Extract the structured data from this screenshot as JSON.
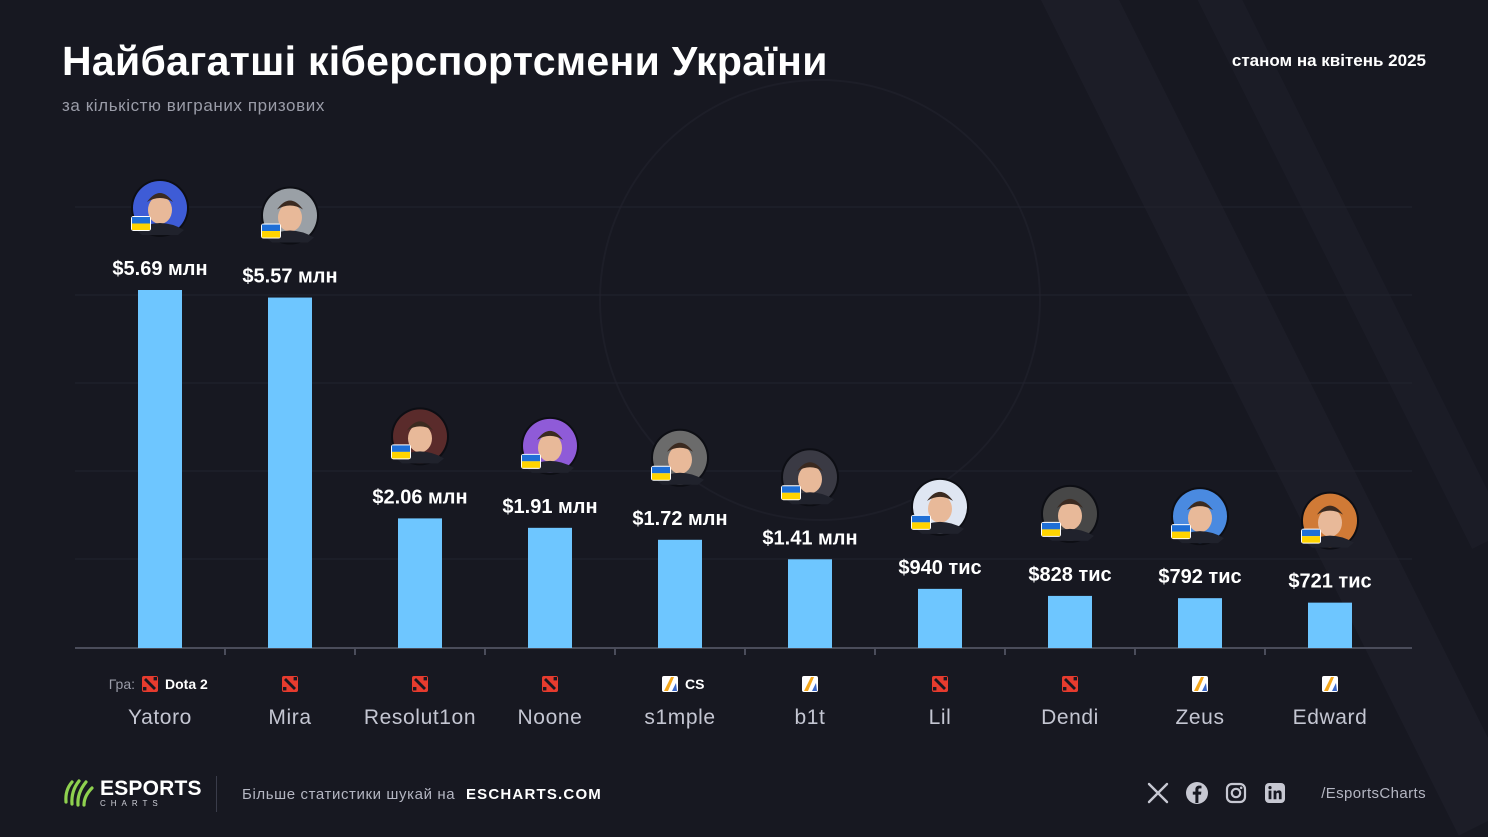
{
  "header": {
    "title": "Найбагатші кіберспортсмени України",
    "subtitle": "за кількістю виграних призових",
    "date": "станом на квітень 2025"
  },
  "chart_data": {
    "type": "bar",
    "title": "Найбагатші кіберспортсмени України",
    "subtitle": "за кількістю виграних призових",
    "unit": "USD",
    "categories": [
      "Yatoro",
      "Mira",
      "Resolut1on",
      "Noone",
      "s1mple",
      "b1t",
      "Lil",
      "Dendi",
      "Zeus",
      "Edward"
    ],
    "values": [
      5690000,
      5570000,
      2060000,
      1910000,
      1720000,
      1410000,
      940000,
      828000,
      792000,
      721000
    ],
    "data_labels": [
      "$5.69 млн",
      "$5.57 млн",
      "$2.06 млн",
      "$1.91 млн",
      "$1.72 млн",
      "$1.41 млн",
      "$940 тис",
      "$828 тис",
      "$792 тис",
      "$721 тис"
    ],
    "games": [
      "Dota 2",
      "Dota 2",
      "Dota 2",
      "Dota 2",
      "CS",
      "CS",
      "Dota 2",
      "Dota 2",
      "CS",
      "CS"
    ],
    "game_prefix": "Гра:",
    "ylim": [
      0,
      7000000
    ],
    "grid": true,
    "bar_color": "#6ec6ff"
  },
  "colors": {
    "background": "#171821",
    "bar": "#6ec6ff",
    "dota_icon": "#e63b2e",
    "cs_icon": "#f4a81d",
    "logo_green": "#8fd14f",
    "flag_blue": "#1f6fd6",
    "flag_yellow": "#ffd400"
  },
  "icons": {
    "dota": "dota2-icon",
    "cs": "cs-icon",
    "flag": "ukraine-flag-icon"
  },
  "footer": {
    "logo_main": "ESPORTS",
    "logo_sub": "CHARTS",
    "text": "Більше статистики шукай на",
    "link": "ESCHARTS.COM",
    "handle": "/EsportsCharts",
    "socials": [
      "x-icon",
      "facebook-icon",
      "instagram-icon",
      "linkedin-icon"
    ]
  }
}
